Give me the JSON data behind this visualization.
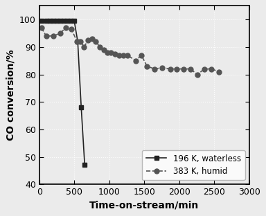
{
  "title": "",
  "xlabel": "Time-on-stream/min",
  "ylabel": "CO conversion/%",
  "xlim": [
    0,
    3000
  ],
  "ylim": [
    40,
    105
  ],
  "yticks": [
    40,
    50,
    60,
    70,
    80,
    90,
    100
  ],
  "xticks": [
    0,
    500,
    1000,
    1500,
    2000,
    2500,
    3000
  ],
  "series1": {
    "label": "196 K, waterless",
    "color": "#222222",
    "marker": "s",
    "linestyle": "-",
    "x": [
      30,
      100,
      150,
      200,
      250,
      300,
      350,
      400,
      450,
      500,
      550,
      600,
      650
    ],
    "y": [
      99.5,
      99.5,
      99.5,
      99.5,
      99.5,
      99.5,
      99.5,
      99.5,
      99.5,
      99.5,
      92,
      68,
      47
    ]
  },
  "series2": {
    "label": "383 K, humid",
    "color": "#555555",
    "marker": "o",
    "linestyle": "--",
    "x": [
      30,
      100,
      200,
      300,
      380,
      460,
      540,
      590,
      640,
      700,
      755,
      810,
      865,
      920,
      970,
      1020,
      1080,
      1140,
      1200,
      1260,
      1380,
      1460,
      1540,
      1650,
      1760,
      1870,
      1960,
      2060,
      2160,
      2260,
      2360,
      2460,
      2570
    ],
    "y": [
      97,
      94,
      94,
      95,
      97,
      96.5,
      92,
      92,
      90,
      92.5,
      93,
      92,
      90,
      89,
      88,
      88,
      87.5,
      87,
      87,
      87,
      85,
      87,
      83,
      82,
      82.5,
      82,
      82,
      82,
      82,
      80,
      82,
      82,
      81
    ]
  },
  "background_color": "#ebebeb",
  "legend_loc": "lower right",
  "markersize": 5,
  "linewidth": 1.2
}
